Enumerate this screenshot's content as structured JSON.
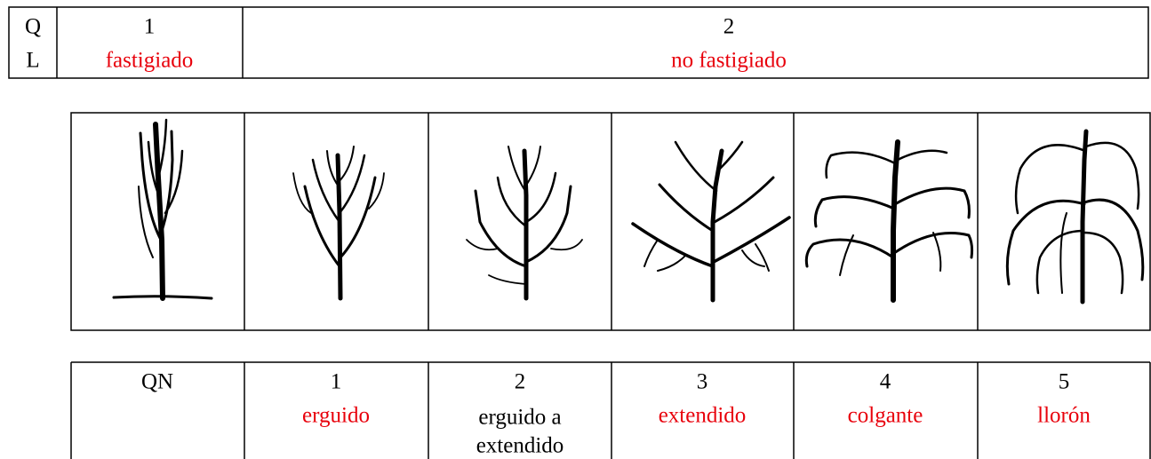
{
  "ql_table": {
    "code": [
      "Q",
      "L"
    ],
    "columns": [
      {
        "number": 1,
        "label": "fastigiado"
      },
      {
        "number": 2,
        "label": "no fastigiado"
      }
    ]
  },
  "qn_table": {
    "code": "QN",
    "columns": [
      {
        "number": 1,
        "label": [
          "erguido"
        ]
      },
      {
        "number": 2,
        "label": [
          "erguido a",
          "extendido"
        ]
      },
      {
        "number": 3,
        "label": [
          "extendido"
        ]
      },
      {
        "number": 4,
        "label": [
          "colgante"
        ]
      },
      {
        "number": 5,
        "label": [
          "llorón"
        ]
      }
    ]
  }
}
